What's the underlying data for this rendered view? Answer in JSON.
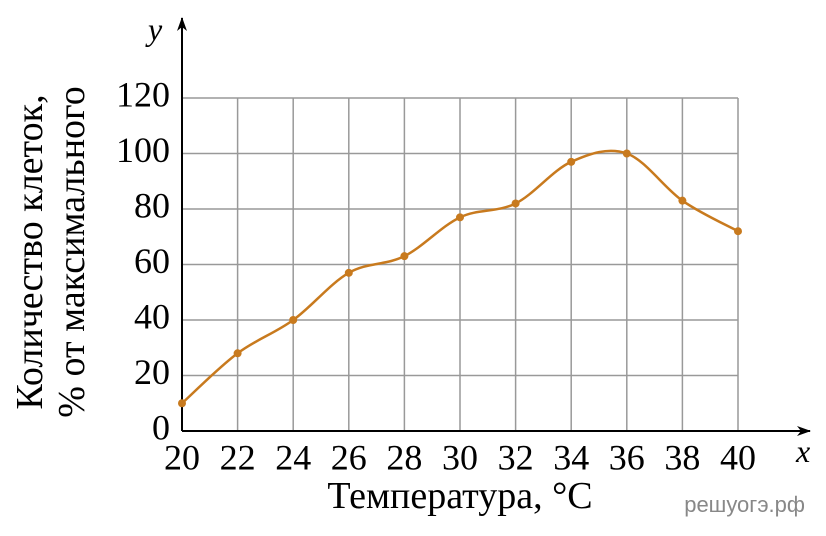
{
  "chart_data": {
    "type": "line",
    "x_label": "Температура, °C",
    "y_label": [
      "Количество клеток,",
      "% от максимального"
    ],
    "x_axis_name": "x",
    "y_axis_name": "y",
    "watermark": "решуогэ.рф",
    "x": [
      20,
      22,
      24,
      26,
      28,
      30,
      32,
      34,
      36,
      38,
      40
    ],
    "series": [
      {
        "name": "Количество клеток",
        "color": "#c87a1e",
        "values": [
          10,
          28,
          40,
          57,
          63,
          77,
          82,
          97,
          100,
          83,
          72
        ]
      }
    ],
    "xlim": [
      20,
      40
    ],
    "ylim": [
      0,
      120
    ],
    "xticks": [
      20,
      22,
      24,
      26,
      28,
      30,
      32,
      34,
      36,
      38,
      40
    ],
    "yticks": [
      0,
      20,
      40,
      60,
      80,
      100,
      120
    ],
    "grid": true
  }
}
